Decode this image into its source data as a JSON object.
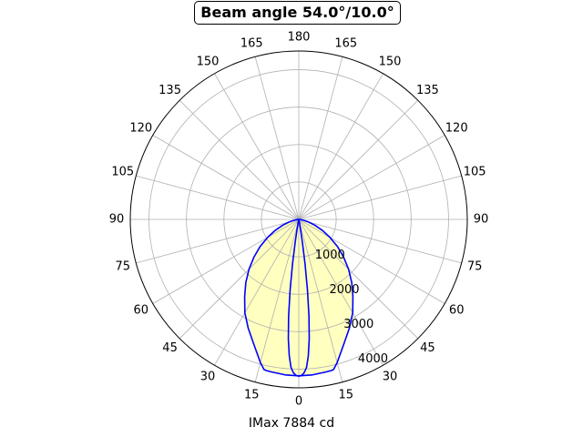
{
  "chart_data": {
    "type": "polar",
    "title": "Beam angle 54.0°/10.0°",
    "xlabel": "IMax 7884 cd",
    "angle_ticks": [
      "0",
      "15",
      "30",
      "45",
      "60",
      "75",
      "90",
      "105",
      "120",
      "135",
      "150",
      "165",
      "180",
      "165",
      "150",
      "135",
      "120",
      "105",
      "90",
      "75",
      "60",
      "45",
      "30",
      "15"
    ],
    "angle_tick_values": [
      0,
      15,
      30,
      45,
      60,
      75,
      90,
      105,
      120,
      135,
      150,
      165,
      180,
      195,
      210,
      225,
      240,
      255,
      270,
      285,
      300,
      315,
      330,
      345
    ],
    "radial_ticks": [
      "1000",
      "2000",
      "3000",
      "4000"
    ],
    "radial_tick_values": [
      1000,
      2000,
      3000,
      4000
    ],
    "rlim": [
      0,
      4500
    ],
    "grid": true,
    "series": [
      {
        "color": "#0000ff",
        "fill": "#ffffc0",
        "angles_deg": [
          0,
          5,
          10,
          12,
          13,
          15,
          20,
          25,
          30,
          35,
          40,
          45,
          50,
          55,
          60,
          65,
          70,
          75,
          80,
          85,
          90
        ],
        "values": [
          4180,
          4170,
          4140,
          4132,
          4120,
          3960,
          3530,
          3200,
          2880,
          2520,
          2200,
          1880,
          1560,
          1260,
          960,
          700,
          460,
          270,
          120,
          40,
          0
        ]
      },
      {
        "color": "#0000ff",
        "fill": "#ffffc0",
        "angles_deg": [
          0,
          1,
          2,
          3,
          4,
          5,
          6,
          7,
          8,
          9,
          10,
          12,
          15
        ],
        "values": [
          4190,
          4170,
          4100,
          3960,
          3650,
          3200,
          2600,
          1900,
          1200,
          600,
          250,
          60,
          0
        ]
      }
    ]
  }
}
